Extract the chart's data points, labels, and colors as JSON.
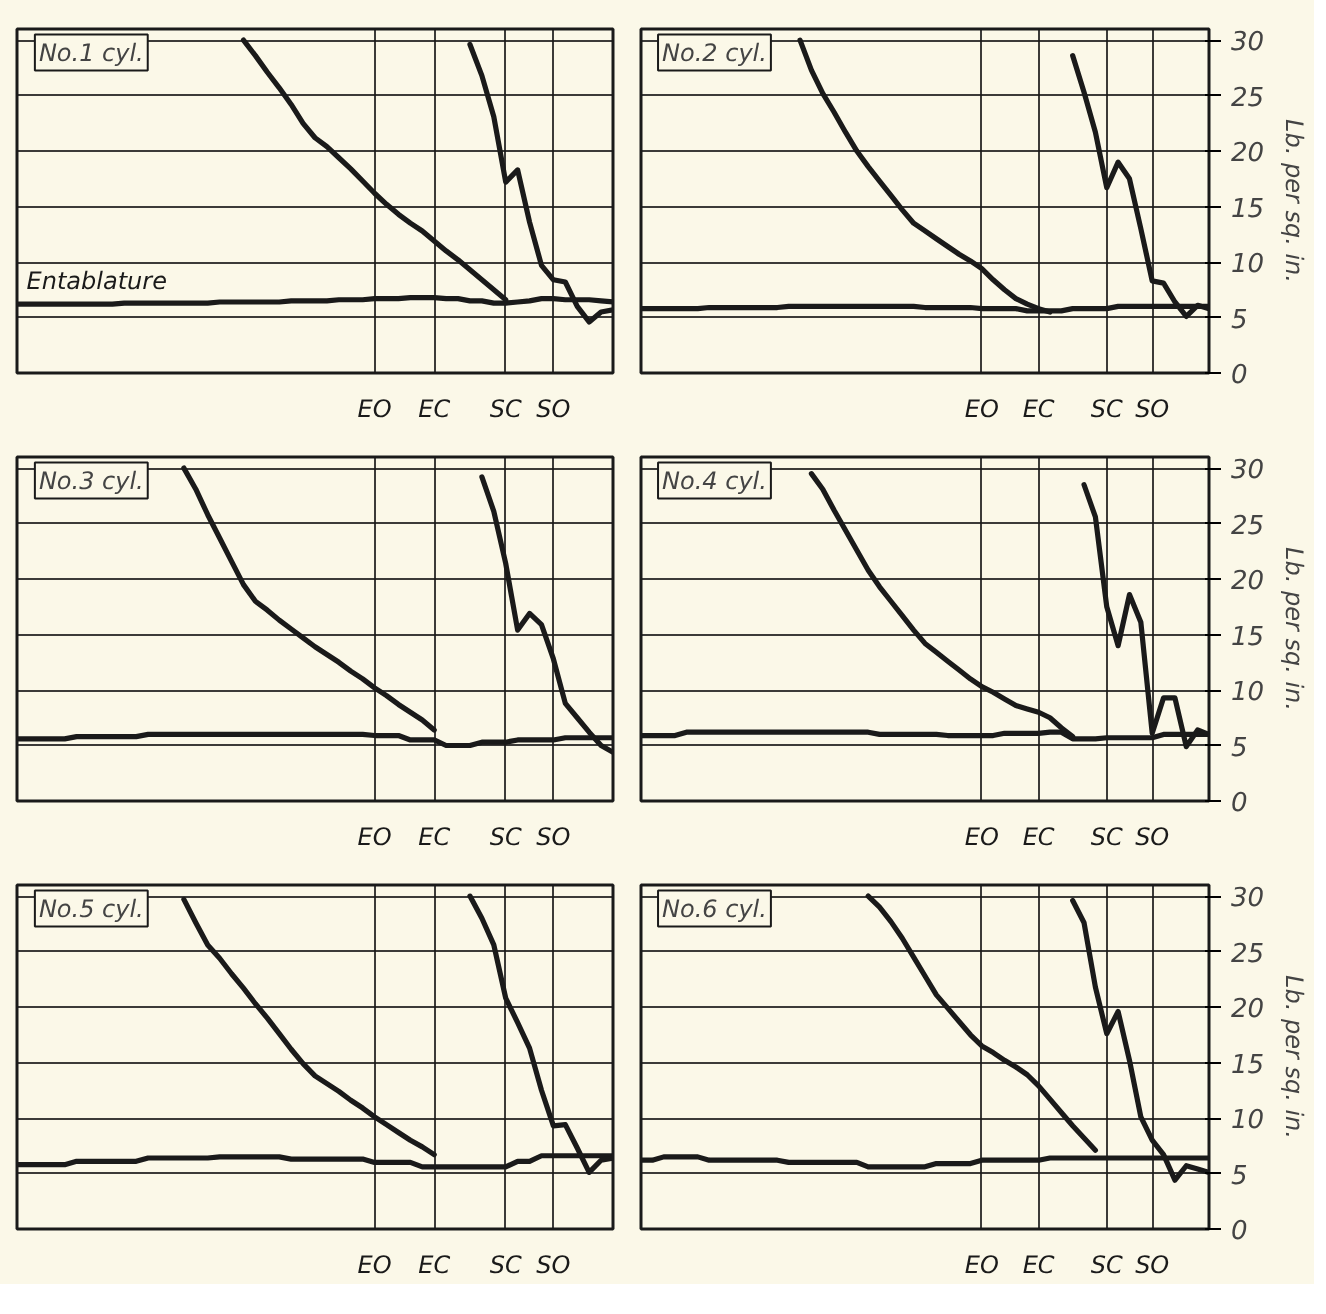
{
  "chart_data": [
    {
      "type": "line",
      "title": "No.1 cyl.",
      "tick_labels": "x",
      "grid": true,
      "ylim": [
        0,
        31
      ],
      "yticks": [
        0,
        5,
        10,
        15,
        20,
        25,
        30
      ],
      "categories": [
        null,
        null,
        null,
        null,
        null,
        null,
        null,
        null,
        null,
        null,
        null,
        null,
        null,
        null,
        null,
        null,
        null,
        null,
        null,
        null,
        null,
        null,
        null,
        null,
        null,
        null,
        null,
        null,
        null,
        null,
        "EO",
        null,
        null,
        null,
        null,
        "EC",
        null,
        null,
        null,
        null,
        null,
        "SC",
        null,
        null,
        null,
        "SO",
        null,
        null,
        null,
        null,
        null
      ],
      "series": [
        {
          "name": "Entablature",
          "color": "#1a1a1a",
          "values": [
            6.2,
            6.2,
            6.2,
            6.2,
            6.2,
            6.2,
            6.2,
            6.2,
            6.2,
            6.3,
            6.3,
            6.3,
            6.3,
            6.3,
            6.3,
            6.3,
            6.3,
            6.4,
            6.4,
            6.4,
            6.4,
            6.4,
            6.4,
            6.5,
            6.5,
            6.5,
            6.5,
            6.6,
            6.6,
            6.6,
            6.7,
            6.7,
            6.7,
            6.8,
            6.8,
            6.8,
            6.7,
            6.7,
            6.5,
            6.5,
            6.3,
            6.3,
            6.4,
            6.5,
            6.7,
            6.7,
            6.6,
            6.6,
            6.6,
            6.5,
            6.4
          ]
        },
        {
          "color": "#1a1a1a",
          "values": [
            null,
            null,
            null,
            null,
            null,
            null,
            null,
            null,
            null,
            null,
            null,
            null,
            null,
            null,
            null,
            null,
            null,
            null,
            null,
            30,
            28.6,
            27.1,
            25.7,
            24.2,
            22.5,
            21.2,
            20.4,
            19.4,
            18.4,
            17.3,
            16.2,
            15.2,
            14.3,
            13.5,
            12.8,
            11.9,
            11.0,
            10.2,
            9.3,
            8.4,
            7.5,
            6.6,
            null,
            null,
            null,
            null,
            null,
            null,
            null,
            null,
            null
          ]
        },
        {
          "color": "#1a1a1a",
          "values": [
            null,
            null,
            null,
            null,
            null,
            null,
            null,
            null,
            null,
            null,
            null,
            null,
            null,
            null,
            null,
            null,
            null,
            null,
            null,
            null,
            null,
            null,
            null,
            null,
            null,
            null,
            null,
            null,
            null,
            null,
            null,
            null,
            null,
            null,
            null,
            null,
            null,
            null,
            29.6,
            26.8,
            23.1,
            17.2,
            18.3,
            13.6,
            9.7,
            8.4,
            8.2,
            6.0,
            4.6,
            5.5,
            5.7
          ]
        }
      ]
    },
    {
      "type": "line",
      "title": "No.2 cyl.",
      "ylabel": "Lb. per sq. in.",
      "grid": true,
      "ylim": [
        0,
        31
      ],
      "yticks": [
        0,
        5,
        10,
        15,
        20,
        25,
        30
      ],
      "categories": [
        null,
        null,
        null,
        null,
        null,
        null,
        null,
        null,
        null,
        null,
        null,
        null,
        null,
        null,
        null,
        null,
        null,
        null,
        null,
        null,
        null,
        null,
        null,
        null,
        null,
        null,
        null,
        null,
        null,
        null,
        "EO",
        null,
        null,
        null,
        null,
        "EC",
        null,
        null,
        null,
        null,
        null,
        "SC",
        null,
        null,
        null,
        "SO",
        null,
        null,
        null,
        null,
        null
      ],
      "series": [
        {
          "color": "#1a1a1a",
          "values": [
            5.8,
            5.8,
            5.8,
            5.8,
            5.8,
            5.8,
            5.9,
            5.9,
            5.9,
            5.9,
            5.9,
            5.9,
            5.9,
            6.0,
            6.0,
            6.0,
            6.0,
            6.0,
            6.0,
            6.0,
            6.0,
            6.0,
            6.0,
            6.0,
            6.0,
            5.9,
            5.9,
            5.9,
            5.9,
            5.9,
            5.8,
            5.8,
            5.8,
            5.8,
            5.6,
            5.6,
            5.6,
            5.6,
            5.8,
            5.8,
            5.8,
            5.8,
            6.0,
            6.0,
            6.0,
            6.0,
            6.0,
            6.0,
            6.0,
            6.0,
            6.0
          ]
        },
        {
          "color": "#1a1a1a",
          "values": [
            null,
            null,
            null,
            null,
            null,
            null,
            null,
            null,
            null,
            null,
            null,
            null,
            null,
            null,
            30,
            27.3,
            25.2,
            23.5,
            21.7,
            20.0,
            18.6,
            17.3,
            16.0,
            14.7,
            13.5,
            12.8,
            12.1,
            11.4,
            10.7,
            10.1,
            9.4,
            8.4,
            7.5,
            6.7,
            6.2,
            5.8,
            5.5,
            null,
            null,
            null,
            null,
            null,
            null,
            null,
            null,
            null,
            null,
            null,
            null,
            null,
            null
          ]
        },
        {
          "color": "#1a1a1a",
          "values": [
            null,
            null,
            null,
            null,
            null,
            null,
            null,
            null,
            null,
            null,
            null,
            null,
            null,
            null,
            null,
            null,
            null,
            null,
            null,
            null,
            null,
            null,
            null,
            null,
            null,
            null,
            null,
            null,
            null,
            null,
            null,
            null,
            null,
            null,
            null,
            null,
            null,
            null,
            28.6,
            25.3,
            21.7,
            16.7,
            19.0,
            17.5,
            13.0,
            8.3,
            8.1,
            6.4,
            5.1,
            6.1,
            5.8
          ]
        }
      ]
    },
    {
      "type": "line",
      "title": "No.3 cyl.",
      "tick_labels": "x",
      "grid": true,
      "ylim": [
        0,
        31
      ],
      "yticks": [
        0,
        5,
        10,
        15,
        20,
        25,
        30
      ],
      "categories": [
        null,
        null,
        null,
        null,
        null,
        null,
        null,
        null,
        null,
        null,
        null,
        null,
        null,
        null,
        null,
        null,
        null,
        null,
        null,
        null,
        null,
        null,
        null,
        null,
        null,
        null,
        null,
        null,
        null,
        null,
        "EO",
        null,
        null,
        null,
        null,
        "EC",
        null,
        null,
        null,
        null,
        null,
        "SC",
        null,
        null,
        null,
        "SO",
        null,
        null,
        null,
        null,
        null
      ],
      "series": [
        {
          "color": "#1a1a1a",
          "values": [
            5.6,
            5.6,
            5.6,
            5.6,
            5.6,
            5.8,
            5.8,
            5.8,
            5.8,
            5.8,
            5.8,
            6.0,
            6.0,
            6.0,
            6.0,
            6.0,
            6.0,
            6.0,
            6.0,
            6.0,
            6.0,
            6.0,
            6.0,
            6.0,
            6.0,
            6.0,
            6.0,
            6.0,
            6.0,
            6.0,
            5.9,
            5.9,
            5.9,
            5.5,
            5.5,
            5.5,
            5.0,
            5.0,
            5.0,
            5.3,
            5.3,
            5.3,
            5.5,
            5.5,
            5.5,
            5.5,
            5.7,
            5.7,
            5.7,
            5.7,
            5.7
          ]
        },
        {
          "color": "#1a1a1a",
          "values": [
            null,
            null,
            null,
            null,
            null,
            null,
            null,
            null,
            null,
            null,
            null,
            null,
            null,
            null,
            30.0,
            28.1,
            25.8,
            23.7,
            21.6,
            19.5,
            18.0,
            17.2,
            16.3,
            15.5,
            14.7,
            13.9,
            13.2,
            12.5,
            11.7,
            11.0,
            10.2,
            9.5,
            8.7,
            8.0,
            7.3,
            6.4,
            null,
            null,
            null,
            null,
            null,
            null,
            null,
            null,
            null,
            null,
            null,
            null,
            null,
            null,
            null
          ]
        },
        {
          "color": "#1a1a1a",
          "values": [
            null,
            null,
            null,
            null,
            null,
            null,
            null,
            null,
            null,
            null,
            null,
            null,
            null,
            null,
            null,
            null,
            null,
            null,
            null,
            null,
            null,
            null,
            null,
            null,
            null,
            null,
            null,
            null,
            null,
            null,
            null,
            null,
            null,
            null,
            null,
            null,
            null,
            null,
            null,
            29.2,
            26.1,
            21.4,
            15.4,
            16.9,
            15.9,
            12.8,
            8.8,
            7.5,
            6.2,
            5.0,
            4.4
          ]
        }
      ]
    },
    {
      "type": "line",
      "title": "No.4 cyl.",
      "ylabel": "Lb. per sq. in.",
      "grid": true,
      "ylim": [
        0,
        31
      ],
      "yticks": [
        0,
        5,
        10,
        15,
        20,
        25,
        30
      ],
      "categories": [
        null,
        null,
        null,
        null,
        null,
        null,
        null,
        null,
        null,
        null,
        null,
        null,
        null,
        null,
        null,
        null,
        null,
        null,
        null,
        null,
        null,
        null,
        null,
        null,
        null,
        null,
        null,
        null,
        null,
        null,
        "EO",
        null,
        null,
        null,
        null,
        "EC",
        null,
        null,
        null,
        null,
        null,
        "SC",
        null,
        null,
        null,
        "SO",
        null,
        null,
        null,
        null,
        null
      ],
      "series": [
        {
          "color": "#1a1a1a",
          "values": [
            5.9,
            5.9,
            5.9,
            5.9,
            6.2,
            6.2,
            6.2,
            6.2,
            6.2,
            6.2,
            6.2,
            6.2,
            6.2,
            6.2,
            6.2,
            6.2,
            6.2,
            6.2,
            6.2,
            6.2,
            6.2,
            6.0,
            6.0,
            6.0,
            6.0,
            6.0,
            6.0,
            5.9,
            5.9,
            5.9,
            5.9,
            5.9,
            6.1,
            6.1,
            6.1,
            6.1,
            6.2,
            6.2,
            5.6,
            5.6,
            5.6,
            5.7,
            5.7,
            5.7,
            5.7,
            5.7,
            6.0,
            6.0,
            6.0,
            6.0,
            6.0
          ]
        },
        {
          "color": "#1a1a1a",
          "values": [
            null,
            null,
            null,
            null,
            null,
            null,
            null,
            null,
            null,
            null,
            null,
            null,
            null,
            null,
            null,
            29.5,
            28.1,
            26.2,
            24.4,
            22.6,
            20.8,
            19.3,
            18.0,
            16.7,
            15.4,
            14.2,
            13.4,
            12.6,
            11.8,
            11.0,
            10.3,
            9.8,
            9.2,
            8.6,
            8.3,
            8.0,
            7.5,
            6.6,
            5.8,
            null,
            null,
            null,
            null,
            null,
            null,
            null,
            null,
            null,
            null,
            null,
            null
          ]
        },
        {
          "color": "#1a1a1a",
          "values": [
            null,
            null,
            null,
            null,
            null,
            null,
            null,
            null,
            null,
            null,
            null,
            null,
            null,
            null,
            null,
            null,
            null,
            null,
            null,
            null,
            null,
            null,
            null,
            null,
            null,
            null,
            null,
            null,
            null,
            null,
            null,
            null,
            null,
            null,
            null,
            null,
            null,
            null,
            null,
            28.5,
            25.6,
            17.5,
            14.0,
            18.6,
            16.1,
            6.1,
            9.3,
            9.3,
            4.9,
            6.4,
            6.0
          ]
        }
      ]
    },
    {
      "type": "line",
      "title": "No.5 cyl.",
      "tick_labels": "x",
      "grid": true,
      "ylim": [
        0,
        31
      ],
      "yticks": [
        0,
        5,
        10,
        15,
        20,
        25,
        30
      ],
      "categories": [
        null,
        null,
        null,
        null,
        null,
        null,
        null,
        null,
        null,
        null,
        null,
        null,
        null,
        null,
        null,
        null,
        null,
        null,
        null,
        null,
        null,
        null,
        null,
        null,
        null,
        null,
        null,
        null,
        null,
        null,
        "EO",
        null,
        null,
        null,
        null,
        "EC",
        null,
        null,
        null,
        null,
        null,
        "SC",
        null,
        null,
        null,
        "SO",
        null,
        null,
        null,
        null,
        null
      ],
      "series": [
        {
          "color": "#1a1a1a",
          "values": [
            5.8,
            5.8,
            5.8,
            5.8,
            5.8,
            6.1,
            6.1,
            6.1,
            6.1,
            6.1,
            6.1,
            6.4,
            6.4,
            6.4,
            6.4,
            6.4,
            6.4,
            6.5,
            6.5,
            6.5,
            6.5,
            6.5,
            6.5,
            6.3,
            6.3,
            6.3,
            6.3,
            6.3,
            6.3,
            6.3,
            6.0,
            6.0,
            6.0,
            6.0,
            5.6,
            5.6,
            5.6,
            5.6,
            5.6,
            5.6,
            5.6,
            5.6,
            6.1,
            6.1,
            6.6,
            6.6,
            6.6,
            6.6,
            6.6,
            6.6,
            6.6
          ]
        },
        {
          "color": "#1a1a1a",
          "values": [
            null,
            null,
            null,
            null,
            null,
            null,
            null,
            null,
            null,
            null,
            null,
            null,
            null,
            null,
            29.7,
            27.6,
            25.6,
            24.4,
            23.0,
            21.7,
            20.3,
            19.0,
            17.6,
            16.2,
            14.9,
            13.8,
            13.1,
            12.4,
            11.6,
            10.9,
            10.1,
            9.4,
            8.7,
            8.0,
            7.4,
            6.7,
            null,
            null,
            null,
            null,
            null,
            null,
            null,
            null,
            null,
            null,
            null,
            null,
            null,
            null,
            null
          ]
        },
        {
          "color": "#1a1a1a",
          "values": [
            null,
            null,
            null,
            null,
            null,
            null,
            null,
            null,
            null,
            null,
            null,
            null,
            null,
            null,
            null,
            null,
            null,
            null,
            null,
            null,
            null,
            null,
            null,
            null,
            null,
            null,
            null,
            null,
            null,
            null,
            null,
            null,
            null,
            null,
            null,
            null,
            null,
            null,
            30,
            28.0,
            25.6,
            20.8,
            18.6,
            16.3,
            12.5,
            9.3,
            9.4,
            7.3,
            5.1,
            6.2,
            6.4
          ]
        }
      ]
    },
    {
      "type": "line",
      "title": "No.6 cyl.",
      "ylabel": "Lb. per sq. in.",
      "grid": true,
      "ylim": [
        0,
        31
      ],
      "yticks": [
        0,
        5,
        10,
        15,
        20,
        25,
        30
      ],
      "categories": [
        null,
        null,
        null,
        null,
        null,
        null,
        null,
        null,
        null,
        null,
        null,
        null,
        null,
        null,
        null,
        null,
        null,
        null,
        null,
        null,
        null,
        null,
        null,
        null,
        null,
        null,
        null,
        null,
        null,
        null,
        "EO",
        null,
        null,
        null,
        null,
        "EC",
        null,
        null,
        null,
        null,
        null,
        "SC",
        null,
        null,
        null,
        "SO",
        null,
        null,
        null,
        null,
        null
      ],
      "series": [
        {
          "color": "#1a1a1a",
          "values": [
            6.2,
            6.2,
            6.5,
            6.5,
            6.5,
            6.5,
            6.2,
            6.2,
            6.2,
            6.2,
            6.2,
            6.2,
            6.2,
            6.0,
            6.0,
            6.0,
            6.0,
            6.0,
            6.0,
            6.0,
            5.6,
            5.6,
            5.6,
            5.6,
            5.6,
            5.6,
            5.9,
            5.9,
            5.9,
            5.9,
            6.2,
            6.2,
            6.2,
            6.2,
            6.2,
            6.2,
            6.4,
            6.4,
            6.4,
            6.4,
            6.4,
            6.4,
            6.4,
            6.4,
            6.4,
            6.4,
            6.4,
            6.4,
            6.4,
            6.4,
            6.4
          ]
        },
        {
          "color": "#1a1a1a",
          "values": [
            null,
            null,
            null,
            null,
            null,
            null,
            null,
            null,
            null,
            null,
            null,
            null,
            null,
            null,
            null,
            null,
            null,
            null,
            null,
            null,
            30,
            29.0,
            27.7,
            26.2,
            24.5,
            22.8,
            21.1,
            19.9,
            18.7,
            17.5,
            16.5,
            15.9,
            15.2,
            14.6,
            13.9,
            12.9,
            11.7,
            10.5,
            9.3,
            8.2,
            7.1,
            null,
            null,
            null,
            null,
            null,
            null,
            null,
            null,
            null,
            null
          ]
        },
        {
          "color": "#1a1a1a",
          "values": [
            null,
            null,
            null,
            null,
            null,
            null,
            null,
            null,
            null,
            null,
            null,
            null,
            null,
            null,
            null,
            null,
            null,
            null,
            null,
            null,
            null,
            null,
            null,
            null,
            null,
            null,
            null,
            null,
            null,
            null,
            null,
            null,
            null,
            null,
            null,
            null,
            null,
            null,
            29.6,
            27.6,
            21.8,
            17.6,
            19.6,
            15.2,
            10.1,
            8.0,
            6.7,
            4.4,
            5.7,
            5.4,
            5.1
          ]
        }
      ]
    }
  ]
}
